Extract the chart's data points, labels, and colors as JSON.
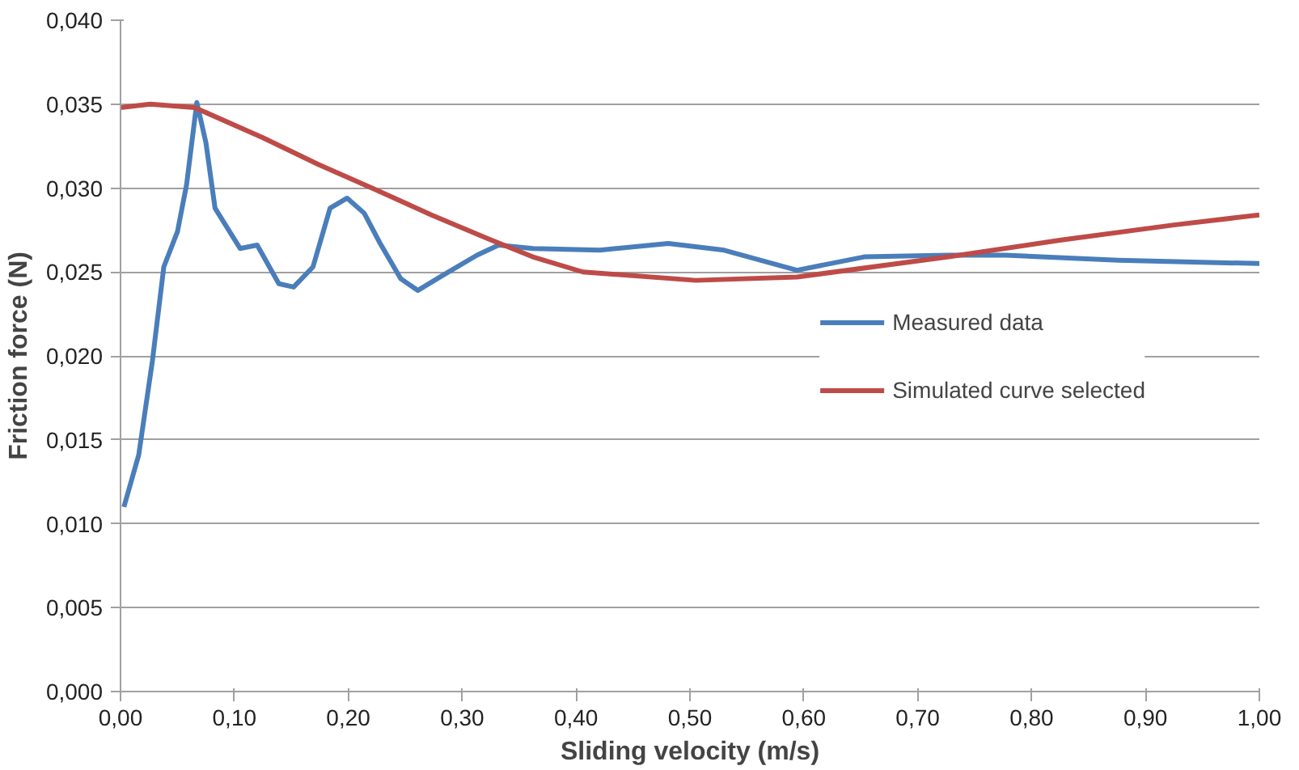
{
  "chart_data": {
    "type": "line",
    "xlabel": "Sliding velocity (m/s)",
    "ylabel": "Friction force (N)",
    "xlim": [
      0,
      1
    ],
    "xticks": [
      {
        "value": 0,
        "label": "0,00"
      },
      {
        "value": 0.1,
        "label": "0,10"
      },
      {
        "value": 0.2,
        "label": "0,20"
      },
      {
        "value": 0.3,
        "label": "0,30"
      },
      {
        "value": 0.4,
        "label": "0,40"
      },
      {
        "value": 0.5,
        "label": "0,50"
      },
      {
        "value": 0.6,
        "label": "0,60"
      },
      {
        "value": 0.7,
        "label": "0,70"
      },
      {
        "value": 0.8,
        "label": "0,80"
      },
      {
        "value": 0.9,
        "label": "0,90"
      },
      {
        "value": 1,
        "label": "1,00"
      }
    ],
    "ylim": [
      0,
      0.04
    ],
    "yticks": [
      {
        "value": 0,
        "label": "0,000"
      },
      {
        "value": 0.005,
        "label": "0,005"
      },
      {
        "value": 0.01,
        "label": "0,010"
      },
      {
        "value": 0.015,
        "label": "0,015"
      },
      {
        "value": 0.02,
        "label": "0,020"
      },
      {
        "value": 0.025,
        "label": "0,025"
      },
      {
        "value": 0.03,
        "label": "0,030"
      },
      {
        "value": 0.035,
        "label": "0,035"
      },
      {
        "value": 0.04,
        "label": "0,040"
      }
    ],
    "grid": "y",
    "legend": "right",
    "marker": "none",
    "line_style": "solid",
    "series": [
      {
        "name": "Measured data",
        "color": "#4a7ebb",
        "x": [
          0.003,
          0.016,
          0.028,
          0.038,
          0.05,
          0.058,
          0.067,
          0.075,
          0.083,
          0.105,
          0.12,
          0.139,
          0.152,
          0.169,
          0.184,
          0.199,
          0.214,
          0.228,
          0.246,
          0.261,
          0.283,
          0.313,
          0.332,
          0.362,
          0.421,
          0.481,
          0.53,
          0.594,
          0.653,
          0.727,
          0.777,
          0.876,
          1.0
        ],
        "values": [
          0.011,
          0.0141,
          0.0197,
          0.0253,
          0.0274,
          0.0302,
          0.0351,
          0.0327,
          0.0288,
          0.0264,
          0.0266,
          0.0243,
          0.0241,
          0.0253,
          0.0288,
          0.0294,
          0.0285,
          0.0267,
          0.0246,
          0.0239,
          0.0248,
          0.026,
          0.0266,
          0.0264,
          0.0263,
          0.0267,
          0.0263,
          0.0251,
          0.0259,
          0.026,
          0.026,
          0.0257,
          0.0255
        ]
      },
      {
        "name": "Simulated curve selected",
        "color": "#be4b48",
        "x": [
          0.0,
          0.026,
          0.065,
          0.125,
          0.174,
          0.224,
          0.273,
          0.322,
          0.362,
          0.406,
          0.505,
          0.594,
          0.727,
          0.826,
          0.925,
          1.0
        ],
        "values": [
          0.0348,
          0.035,
          0.0348,
          0.033,
          0.0314,
          0.0299,
          0.0284,
          0.027,
          0.0259,
          0.025,
          0.0245,
          0.0247,
          0.0259,
          0.0269,
          0.0278,
          0.0284
        ]
      }
    ]
  }
}
